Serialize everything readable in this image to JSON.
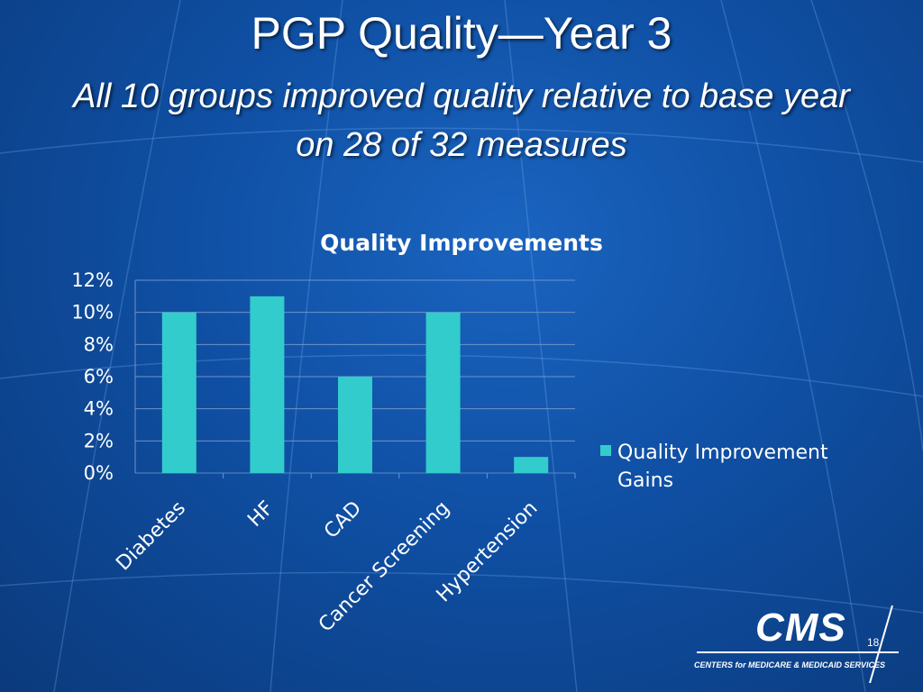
{
  "slide": {
    "title": "PGP Quality—Year 3",
    "subtitle": "All 10 groups improved quality relative to base year on 28 of 32 measures",
    "page_number": "18"
  },
  "logo": {
    "name": "CMS",
    "tagline": "CENTERS for MEDICARE & MEDICAID SERVICES"
  },
  "colors": {
    "bar": "#33cccc",
    "background": "#0f4fa3",
    "text": "#ffffff"
  },
  "chart_data": {
    "type": "bar",
    "title": "Quality Improvements",
    "categories": [
      "Diabetes",
      "HF",
      "CAD",
      "Cancer Screening",
      "Hypertension"
    ],
    "series": [
      {
        "name": "Quality Improvement Gains",
        "values": [
          0.1,
          0.11,
          0.06,
          0.1,
          0.01
        ]
      }
    ],
    "ylim": [
      0,
      0.12
    ],
    "yticks": [
      "0%",
      "2%",
      "4%",
      "6%",
      "8%",
      "10%",
      "12%"
    ],
    "grid": true,
    "legend": "right"
  }
}
